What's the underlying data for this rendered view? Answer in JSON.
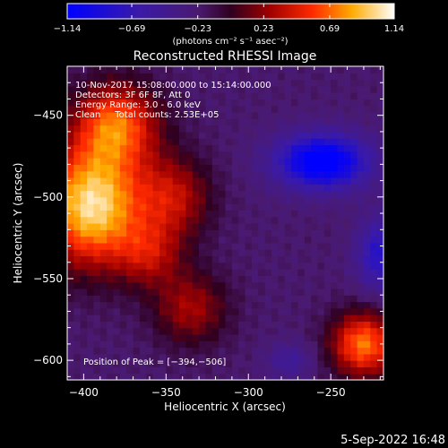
{
  "chart_data": {
    "type": "heatmap",
    "title": "Reconstructed RHESSI Image",
    "xlabel": "Heliocentric X (arcsec)",
    "ylabel": "Heliocentric Y (arcsec)",
    "xlim": [
      -410,
      -218
    ],
    "ylim": [
      -612,
      -420
    ],
    "x_ticks": [
      -400,
      -350,
      -300,
      -250
    ],
    "x_tick_labels": [
      "−400",
      "−350",
      "−300",
      "−250"
    ],
    "y_ticks": [
      -450,
      -500,
      -550,
      -600
    ],
    "y_tick_labels": [
      "−450",
      "−500",
      "−550",
      "−600"
    ],
    "colorbar": {
      "range": [
        -1.14,
        1.14
      ],
      "ticks": [
        -1.14,
        -0.69,
        -0.23,
        0.23,
        0.69,
        1.14
      ],
      "tick_labels": [
        "−1.14",
        "−0.69",
        "−0.23",
        "0.23",
        "0.69",
        "1.14"
      ],
      "units_text": "(photons cm⁻² s⁻¹ asec⁻²)"
    },
    "annotations": [
      "10-Nov-2017 15:08:00.000 to 15:14:00.000",
      "Detectors: 3F 6F 8F, Att 0",
      "Energy Range: 3.0 - 6.0 keV",
      "Clean     Total counts: 2.53E+05"
    ],
    "peak_text": "Position of Peak = [−394,−506]",
    "peak": {
      "x": -394,
      "y": -506
    },
    "sources": [
      {
        "x": -395,
        "y": -505,
        "sigma_x": 22,
        "sigma_y": 26,
        "amp": 1.25
      },
      {
        "x": -380,
        "y": -455,
        "sigma_x": 18,
        "sigma_y": 18,
        "amp": 0.85
      },
      {
        "x": -345,
        "y": -500,
        "sigma_x": 16,
        "sigma_y": 18,
        "amp": 0.55
      },
      {
        "x": -335,
        "y": -568,
        "sigma_x": 16,
        "sigma_y": 16,
        "amp": 0.5
      },
      {
        "x": -360,
        "y": -535,
        "sigma_x": 14,
        "sigma_y": 14,
        "amp": 0.45
      },
      {
        "x": -230,
        "y": -590,
        "sigma_x": 14,
        "sigma_y": 14,
        "amp": 0.95
      },
      {
        "x": -255,
        "y": -478,
        "sigma_x": 20,
        "sigma_y": 12,
        "amp": -1.05
      },
      {
        "x": -220,
        "y": -535,
        "sigma_x": 10,
        "sigma_y": 16,
        "amp": -0.6
      },
      {
        "x": -275,
        "y": -600,
        "sigma_x": 10,
        "sigma_y": 8,
        "amp": -0.3
      }
    ],
    "background_level": -0.22,
    "grid_steps": 48
  },
  "footer": {
    "date": "5-Sep-2022 16:48"
  }
}
